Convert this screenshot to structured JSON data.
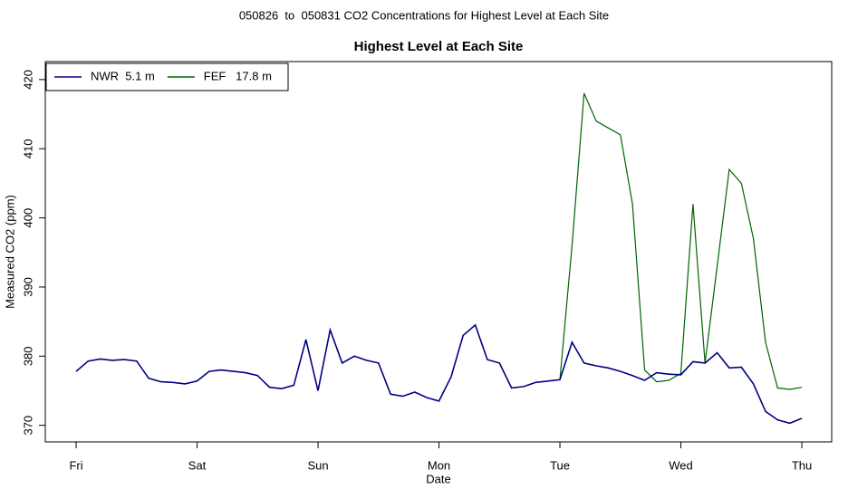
{
  "chart_data": {
    "type": "line",
    "suptitle": "050826  to  050831 CO2 Concentrations for Highest Level at Each Site",
    "title": "Highest Level at Each Site",
    "xlabel": "Date",
    "ylabel": "Measured CO2 (ppm)",
    "x": [
      0,
      0.1,
      0.2,
      0.3,
      0.4,
      0.5,
      0.6,
      0.7,
      0.8,
      0.9,
      1,
      1.1,
      1.2,
      1.3,
      1.4,
      1.5,
      1.6,
      1.7,
      1.8,
      1.9,
      2,
      2.1,
      2.2,
      2.3,
      2.4,
      2.5,
      2.6,
      2.7,
      2.8,
      2.9,
      3,
      3.1,
      3.2,
      3.3,
      3.4,
      3.5,
      3.6,
      3.7,
      3.8,
      3.9,
      4,
      4.1,
      4.2,
      4.3,
      4.4,
      4.5,
      4.6,
      4.7,
      4.8,
      4.9,
      5,
      5.1,
      5.2,
      5.3,
      5.4,
      5.5,
      5.6,
      5.7,
      5.8,
      5.9,
      6
    ],
    "series": [
      {
        "name": "FEF   17.8 m",
        "color": "#006400",
        "values": [
          null,
          null,
          null,
          null,
          null,
          null,
          null,
          null,
          null,
          null,
          null,
          null,
          null,
          null,
          null,
          null,
          null,
          null,
          null,
          null,
          null,
          null,
          null,
          null,
          null,
          null,
          null,
          null,
          null,
          null,
          null,
          null,
          null,
          null,
          null,
          null,
          null,
          null,
          null,
          null,
          376.6,
          396,
          418,
          414,
          413,
          412,
          402,
          378,
          376.3,
          376.5,
          377.5,
          402,
          379,
          393,
          407,
          405,
          397,
          382,
          375.4,
          375.2,
          375.5
        ]
      },
      {
        "name": "NWR  5.1 m",
        "color": "#000080",
        "values": [
          377.8,
          379.3,
          379.6,
          379.4,
          379.5,
          379.3,
          376.8,
          376.3,
          376.2,
          376.0,
          376.4,
          377.8,
          378.0,
          377.8,
          377.6,
          377.2,
          375.5,
          375.3,
          375.8,
          382.4,
          375.0,
          383.8,
          379.0,
          380.0,
          379.4,
          379.0,
          374.5,
          374.2,
          374.8,
          374.0,
          373.5,
          377.0,
          383.0,
          384.5,
          379.5,
          379.0,
          375.4,
          375.6,
          376.2,
          376.4,
          376.6,
          382.0,
          379.0,
          378.6,
          378.3,
          377.8,
          377.2,
          376.5,
          377.6,
          377.4,
          377.3,
          379.2,
          379.0,
          380.5,
          378.3,
          378.4,
          376.0,
          372.0,
          370.8,
          370.3,
          371.0
        ]
      }
    ],
    "legend_order": [
      1,
      0
    ],
    "xlim": [
      -0.255,
      6.247
    ],
    "xticks": [
      {
        "value": 0,
        "label": "Fri"
      },
      {
        "value": 1,
        "label": "Sat"
      },
      {
        "value": 2,
        "label": "Sun"
      },
      {
        "value": 3,
        "label": "Mon"
      },
      {
        "value": 4,
        "label": "Tue"
      },
      {
        "value": 5,
        "label": "Wed"
      },
      {
        "value": 6,
        "label": "Thu"
      }
    ],
    "ylim": [
      367.6,
      422.6
    ],
    "yticks": [
      370,
      380,
      390,
      400,
      410,
      420
    ],
    "legend": "top-left"
  }
}
